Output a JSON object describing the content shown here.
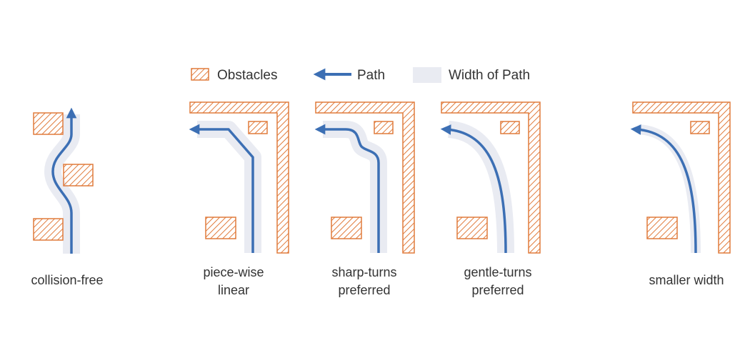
{
  "legend": {
    "obstacles_label": "Obstacles",
    "path_label": "Path",
    "width_label": "Width of Path"
  },
  "panels": [
    {
      "caption_lines": [
        "collision-free"
      ]
    },
    {
      "caption_lines": [
        "piece-wise",
        "linear"
      ]
    },
    {
      "caption_lines": [
        "sharp-turns",
        "preferred"
      ]
    },
    {
      "caption_lines": [
        "gentle-turns",
        "preferred"
      ]
    },
    {
      "caption_lines": [
        "smaller width"
      ]
    }
  ],
  "colors": {
    "obstacle": "#e07b3c",
    "path": "#3c6fb4",
    "path_width": "#e9ebf2",
    "text": "#333333"
  }
}
